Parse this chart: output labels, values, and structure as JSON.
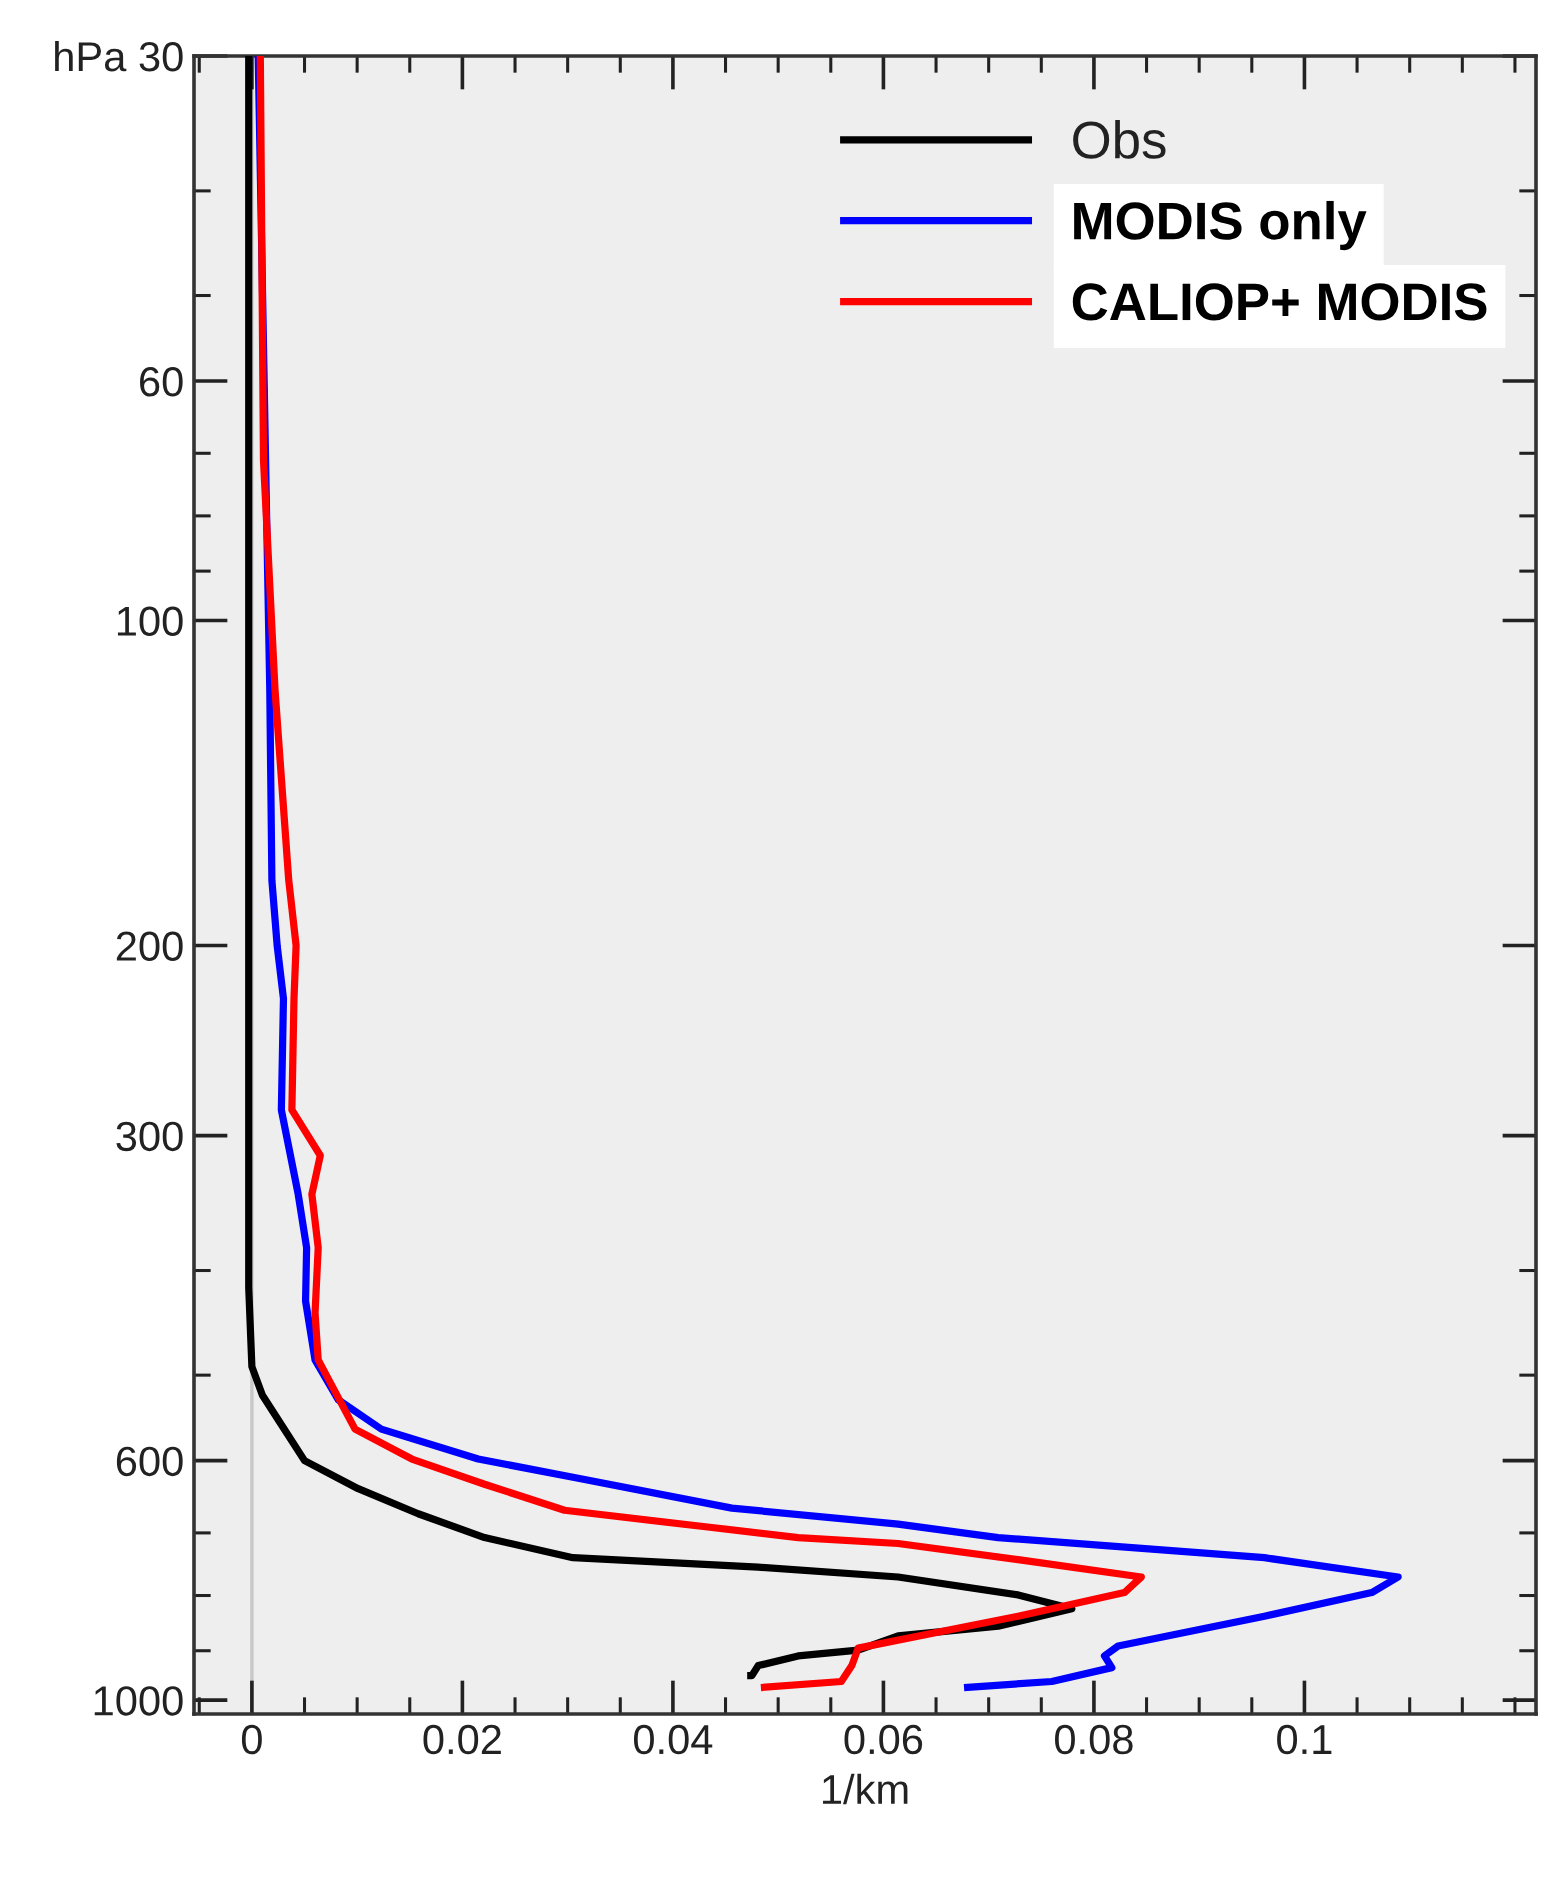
{
  "chart_data": {
    "type": "line",
    "xlabel": "1/km",
    "xlim": [
      -0.0055,
      0.122
    ],
    "ylim": [
      1030,
      30
    ],
    "log": "y",
    "xticks": [
      0,
      0.02,
      0.04,
      0.06,
      0.08,
      0.1
    ],
    "yticks": [
      {
        "value": 30,
        "label": "hPa 30"
      },
      60,
      100,
      200,
      300,
      600,
      1000
    ],
    "grid": false,
    "legend": "top right",
    "marker": "none",
    "line_style": "solid",
    "ref_lines": [
      {
        "axis": "x",
        "value": 0,
        "color": "#c8c8c8"
      }
    ],
    "series": [
      {
        "name": "Obs",
        "color": "#000000",
        "x": [
          -0.0003,
          -0.0003,
          -0.0003,
          0,
          0.001,
          0.0025,
          0.005,
          0.0101,
          0.0158,
          0.0221,
          0.0305,
          0.0481,
          0.0614,
          0.0728,
          0.0779,
          0.0709,
          0.0614,
          0.0576,
          0.0519,
          0.0481,
          0.0475,
          0.0474
        ],
        "values": [
          30,
          284,
          415,
          491,
          522,
          550,
          600,
          637,
          672,
          707,
          738,
          753,
          769,
          799,
          823,
          854,
          872,
          899,
          910,
          929,
          949,
          949
        ]
      },
      {
        "name": "MODIS only",
        "color": "#0000ff",
        "x": [
          0.0006,
          0.0017,
          0.0019,
          0.0024,
          0.003,
          0.0028,
          0.0044,
          0.0052,
          0.0051,
          0.006,
          0.0082,
          0.0123,
          0.0215,
          0.031,
          0.0456,
          0.0614,
          0.0709,
          0.0962,
          0.1089,
          0.1064,
          0.0962,
          0.0823,
          0.081,
          0.0817,
          0.076,
          0.068
        ],
        "values": [
          30,
          116,
          174,
          200,
          224,
          284,
          340,
          381,
          427,
          484,
          527,
          561,
          598,
          623,
          664,
          687,
          707,
          738,
          769,
          795,
          836,
          891,
          910,
          933,
          961,
          973
        ]
      },
      {
        "name": "CALIOP+ MODIS",
        "color": "#ff0000",
        "x": [
          0.0008,
          0.0011,
          0.0022,
          0.0035,
          0.0042,
          0.004,
          0.0038,
          0.0065,
          0.0057,
          0.0063,
          0.006,
          0.0063,
          0.0098,
          0.0152,
          0.0221,
          0.0297,
          0.0437,
          0.0519,
          0.0614,
          0.0728,
          0.0845,
          0.0829,
          0.0728,
          0.0576,
          0.057,
          0.056,
          0.0487
        ],
        "values": [
          30,
          71,
          116,
          174,
          200,
          224,
          284,
          313,
          340,
          381,
          438,
          484,
          561,
          598,
          631,
          667,
          692,
          707,
          716,
          741,
          769,
          795,
          836,
          895,
          929,
          961,
          973
        ]
      }
    ]
  }
}
